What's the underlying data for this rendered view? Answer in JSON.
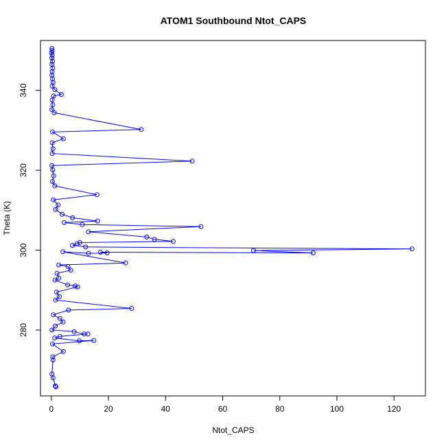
{
  "chart_data": {
    "type": "scatter",
    "title": "ATOM1 Southbound Ntot_CAPS",
    "xlabel": "Ntot_CAPS",
    "ylabel": "Theta (K)",
    "xlim": [
      -3.8,
      131
    ],
    "ylim": [
      263.5,
      352.5
    ],
    "xticks": [
      0,
      20,
      40,
      60,
      80,
      100,
      120
    ],
    "yticks": [
      280,
      300,
      320,
      340
    ],
    "grid": false,
    "legend": "none",
    "color": "#0000ff",
    "series": [
      {
        "style": "lines+open-circles",
        "points": [
          [
            0.2,
            350.5
          ],
          [
            0.3,
            350.0
          ],
          [
            0.1,
            349.4
          ],
          [
            0.3,
            348.8
          ],
          [
            0.2,
            348.1
          ],
          [
            0.4,
            347.3
          ],
          [
            0.2,
            346.5
          ],
          [
            0.5,
            345.6
          ],
          [
            0.3,
            344.7
          ],
          [
            0.2,
            343.8
          ],
          [
            0.4,
            342.9
          ],
          [
            0.6,
            342.0
          ],
          [
            0.3,
            341.1
          ],
          [
            1.2,
            340.2
          ],
          [
            3.5,
            339.0
          ],
          [
            0.8,
            338.6
          ],
          [
            0.3,
            337.6
          ],
          [
            0.5,
            336.4
          ],
          [
            0.2,
            335.2
          ],
          [
            1.0,
            334.4
          ],
          [
            31.5,
            330.2
          ],
          [
            0.4,
            329.6
          ],
          [
            4.2,
            327.9
          ],
          [
            0.3,
            326.9
          ],
          [
            0.6,
            325.4
          ],
          [
            0.3,
            324.2
          ],
          [
            49.3,
            322.3
          ],
          [
            0.2,
            321.2
          ],
          [
            0.5,
            320.1
          ],
          [
            0.8,
            318.6
          ],
          [
            0.4,
            317.2
          ],
          [
            1.2,
            316.1
          ],
          [
            16.0,
            313.9
          ],
          [
            0.7,
            312.6
          ],
          [
            2.4,
            311.3
          ],
          [
            1.5,
            310.2
          ],
          [
            3.8,
            309.0
          ],
          [
            7.4,
            308.1
          ],
          [
            16.2,
            307.3
          ],
          [
            4.5,
            306.9
          ],
          [
            10.8,
            306.4
          ],
          [
            52.4,
            305.9
          ],
          [
            13.0,
            304.6
          ],
          [
            33.4,
            303.3
          ],
          [
            36.1,
            302.7
          ],
          [
            42.7,
            302.2
          ],
          [
            10.0,
            301.9
          ],
          [
            9.0,
            301.6
          ],
          [
            7.4,
            301.2
          ],
          [
            12.0,
            300.8
          ],
          [
            126.3,
            300.3
          ],
          [
            70.8,
            299.9
          ],
          [
            91.7,
            299.3
          ],
          [
            17.2,
            299.5
          ],
          [
            19.5,
            299.3
          ],
          [
            13.0,
            299.2
          ],
          [
            4.0,
            299.6
          ],
          [
            26.0,
            296.8
          ],
          [
            2.6,
            296.3
          ],
          [
            5.8,
            295.9
          ],
          [
            6.8,
            295.0
          ],
          [
            2.0,
            294.2
          ],
          [
            2.6,
            293.0
          ],
          [
            1.3,
            292.5
          ],
          [
            5.7,
            291.3
          ],
          [
            8.3,
            291.0
          ],
          [
            9.2,
            290.8
          ],
          [
            1.8,
            289.5
          ],
          [
            2.8,
            288.4
          ],
          [
            1.5,
            287.5
          ],
          [
            28.1,
            285.4
          ],
          [
            6.0,
            285.0
          ],
          [
            0.7,
            283.8
          ],
          [
            3.0,
            282.9
          ],
          [
            4.1,
            282.0
          ],
          [
            1.4,
            281.0
          ],
          [
            0.2,
            280.0
          ],
          [
            8.0,
            279.6
          ],
          [
            11.5,
            279.0
          ],
          [
            12.8,
            279.0
          ],
          [
            3.0,
            278.4
          ],
          [
            1.2,
            278.0
          ],
          [
            9.8,
            277.3
          ],
          [
            14.9,
            277.4
          ],
          [
            0.4,
            276.5
          ],
          [
            4.2,
            274.6
          ],
          [
            0.5,
            273.3
          ],
          [
            0.6,
            272.5
          ],
          [
            0.2,
            269.0
          ],
          [
            0.6,
            268.0
          ],
          [
            1.4,
            266.0
          ],
          [
            1.6,
            265.8
          ]
        ]
      }
    ]
  }
}
